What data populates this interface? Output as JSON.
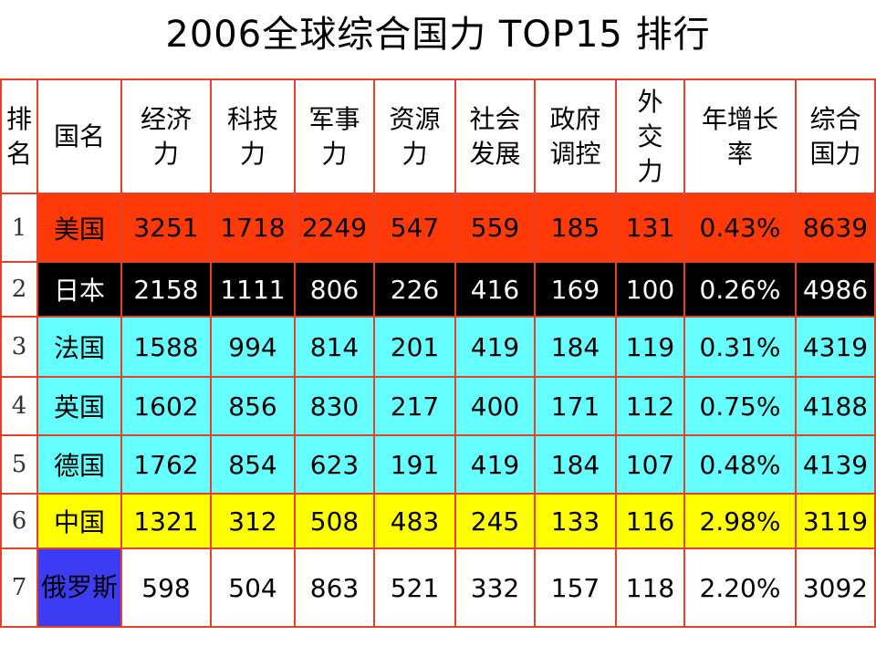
{
  "title": "2006全球综合国力 TOP15 排行",
  "headers": {
    "rank": "排名",
    "country": "国名",
    "economy": "经济力",
    "tech": "科技力",
    "military": "军事力",
    "resources": "资源力",
    "social": "社会发展",
    "government": "政府调控",
    "diplomacy": "外交力",
    "growth": "年增长率",
    "total": "综合国力"
  },
  "header_lines": {
    "rank": [
      "排",
      "名"
    ],
    "country": [
      "国名"
    ],
    "economy": [
      "经济",
      "力"
    ],
    "tech": [
      "科技",
      "力"
    ],
    "military": [
      "军事",
      "力"
    ],
    "resources": [
      "资源",
      "力"
    ],
    "social": [
      "社会",
      "发展"
    ],
    "government": [
      "政府",
      "调控"
    ],
    "diplomacy": [
      "外",
      "交",
      "力"
    ],
    "growth": [
      "年增长",
      "率"
    ],
    "total": [
      "综合",
      "国力"
    ]
  },
  "rows": [
    {
      "rank": "1",
      "country": "美国",
      "economy": "3251",
      "tech": "1718",
      "military": "2249",
      "resources": "547",
      "social": "559",
      "government": "185",
      "diplomacy": "131",
      "growth": "0.43%",
      "total": "8639"
    },
    {
      "rank": "2",
      "country": "日本",
      "economy": "2158",
      "tech": "1111",
      "military": "806",
      "resources": "226",
      "social": "416",
      "government": "169",
      "diplomacy": "100",
      "growth": "0.26%",
      "total": "4986"
    },
    {
      "rank": "3",
      "country": "法国",
      "economy": "1588",
      "tech": "994",
      "military": "814",
      "resources": "201",
      "social": "419",
      "government": "184",
      "diplomacy": "119",
      "growth": "0.31%",
      "total": "4319"
    },
    {
      "rank": "4",
      "country": "英国",
      "economy": "1602",
      "tech": "856",
      "military": "830",
      "resources": "217",
      "social": "400",
      "government": "171",
      "diplomacy": "112",
      "growth": "0.75%",
      "total": "4188"
    },
    {
      "rank": "5",
      "country": "德国",
      "economy": "1762",
      "tech": "854",
      "military": "623",
      "resources": "191",
      "social": "419",
      "government": "184",
      "diplomacy": "107",
      "growth": "0.48%",
      "total": "4139"
    },
    {
      "rank": "6",
      "country": "中国",
      "economy": "1321",
      "tech": "312",
      "military": "508",
      "resources": "483",
      "social": "245",
      "government": "133",
      "diplomacy": "116",
      "growth": "2.98%",
      "total": "3119"
    },
    {
      "rank": "7",
      "country": "俄罗斯",
      "economy": "598",
      "tech": "504",
      "military": "863",
      "resources": "521",
      "social": "332",
      "government": "157",
      "diplomacy": "118",
      "growth": "2.20%",
      "total": "3092"
    }
  ],
  "colors": {
    "usa_row": "#ff3a08",
    "japan_row": "#000000",
    "europe_rows": "#66ffff",
    "china_row": "#ffff00",
    "russia_country_cell": "#3c3cf2",
    "grid": "#e5412a"
  }
}
